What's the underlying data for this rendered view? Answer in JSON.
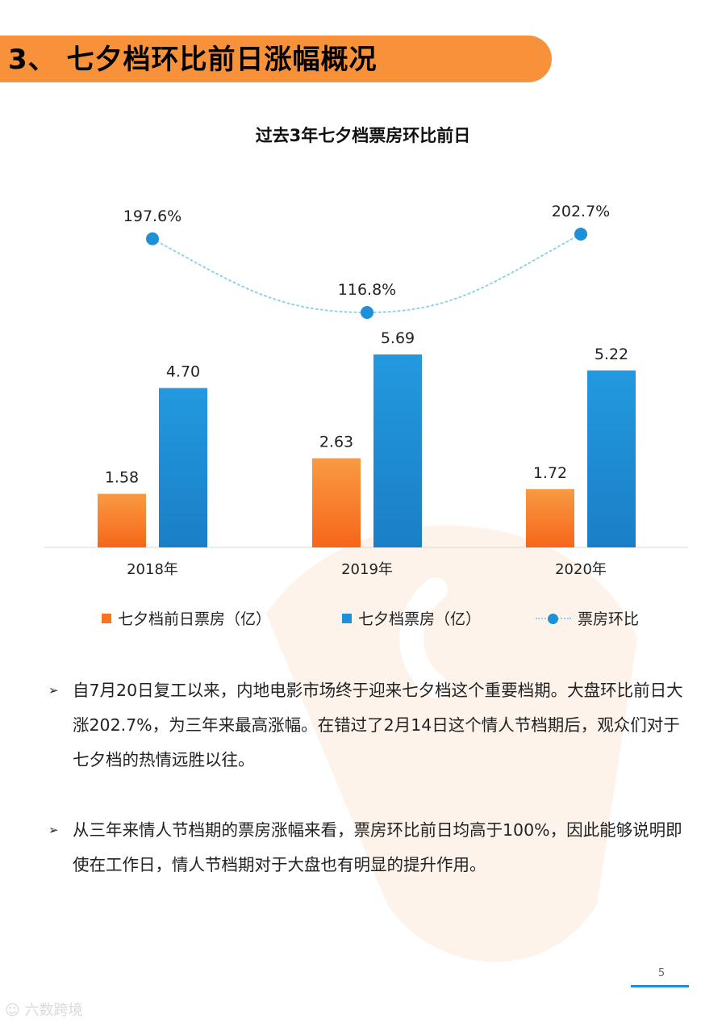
{
  "header": {
    "title": "3、 七夕档环比前日涨幅概况"
  },
  "colors": {
    "accent_orange": "#f7923a",
    "bar_orange": "#f7731f",
    "bar_blue": "#1e90d8",
    "line_dot": "#1e90d8",
    "line_dotted": "#8fd3e6"
  },
  "chart_data": {
    "type": "bar",
    "title": "过去3年七夕档票房环比前日",
    "categories": [
      "2018年",
      "2019年",
      "2020年"
    ],
    "series": [
      {
        "name": "七夕档前日票房（亿）",
        "kind": "bar",
        "values": [
          1.58,
          2.63,
          1.72
        ],
        "labels": [
          "1.58",
          "2.63",
          "1.72"
        ]
      },
      {
        "name": "七夕档票房（亿）",
        "kind": "bar",
        "values": [
          4.7,
          5.69,
          5.22
        ],
        "labels": [
          "4.70",
          "5.69",
          "5.22"
        ]
      },
      {
        "name": "票房环比",
        "kind": "line",
        "values": [
          197.6,
          116.8,
          202.7
        ],
        "labels": [
          "197.6%",
          "116.8%",
          "202.7%"
        ]
      }
    ],
    "legend": "bottom",
    "grid": false
  },
  "bullets": [
    {
      "text": "自7月20日复工以来，内地电影市场终于迎来七夕档这个重要档期。大盘环比前日大涨202.7%，为三年来最高涨幅。在错过了2月14日这个情人节档期后，观众们对于七夕档的热情远胜以往。"
    },
    {
      "text": "从三年来情人节档期的票房涨幅来看，票房环比前日均高于100%，因此能够说明即使在工作日，情人节档期对于大盘也有明显的提升作用。"
    }
  ],
  "bullet_marker": "➢",
  "footer": {
    "page_number": "5",
    "logo_text": "六数跨境"
  }
}
